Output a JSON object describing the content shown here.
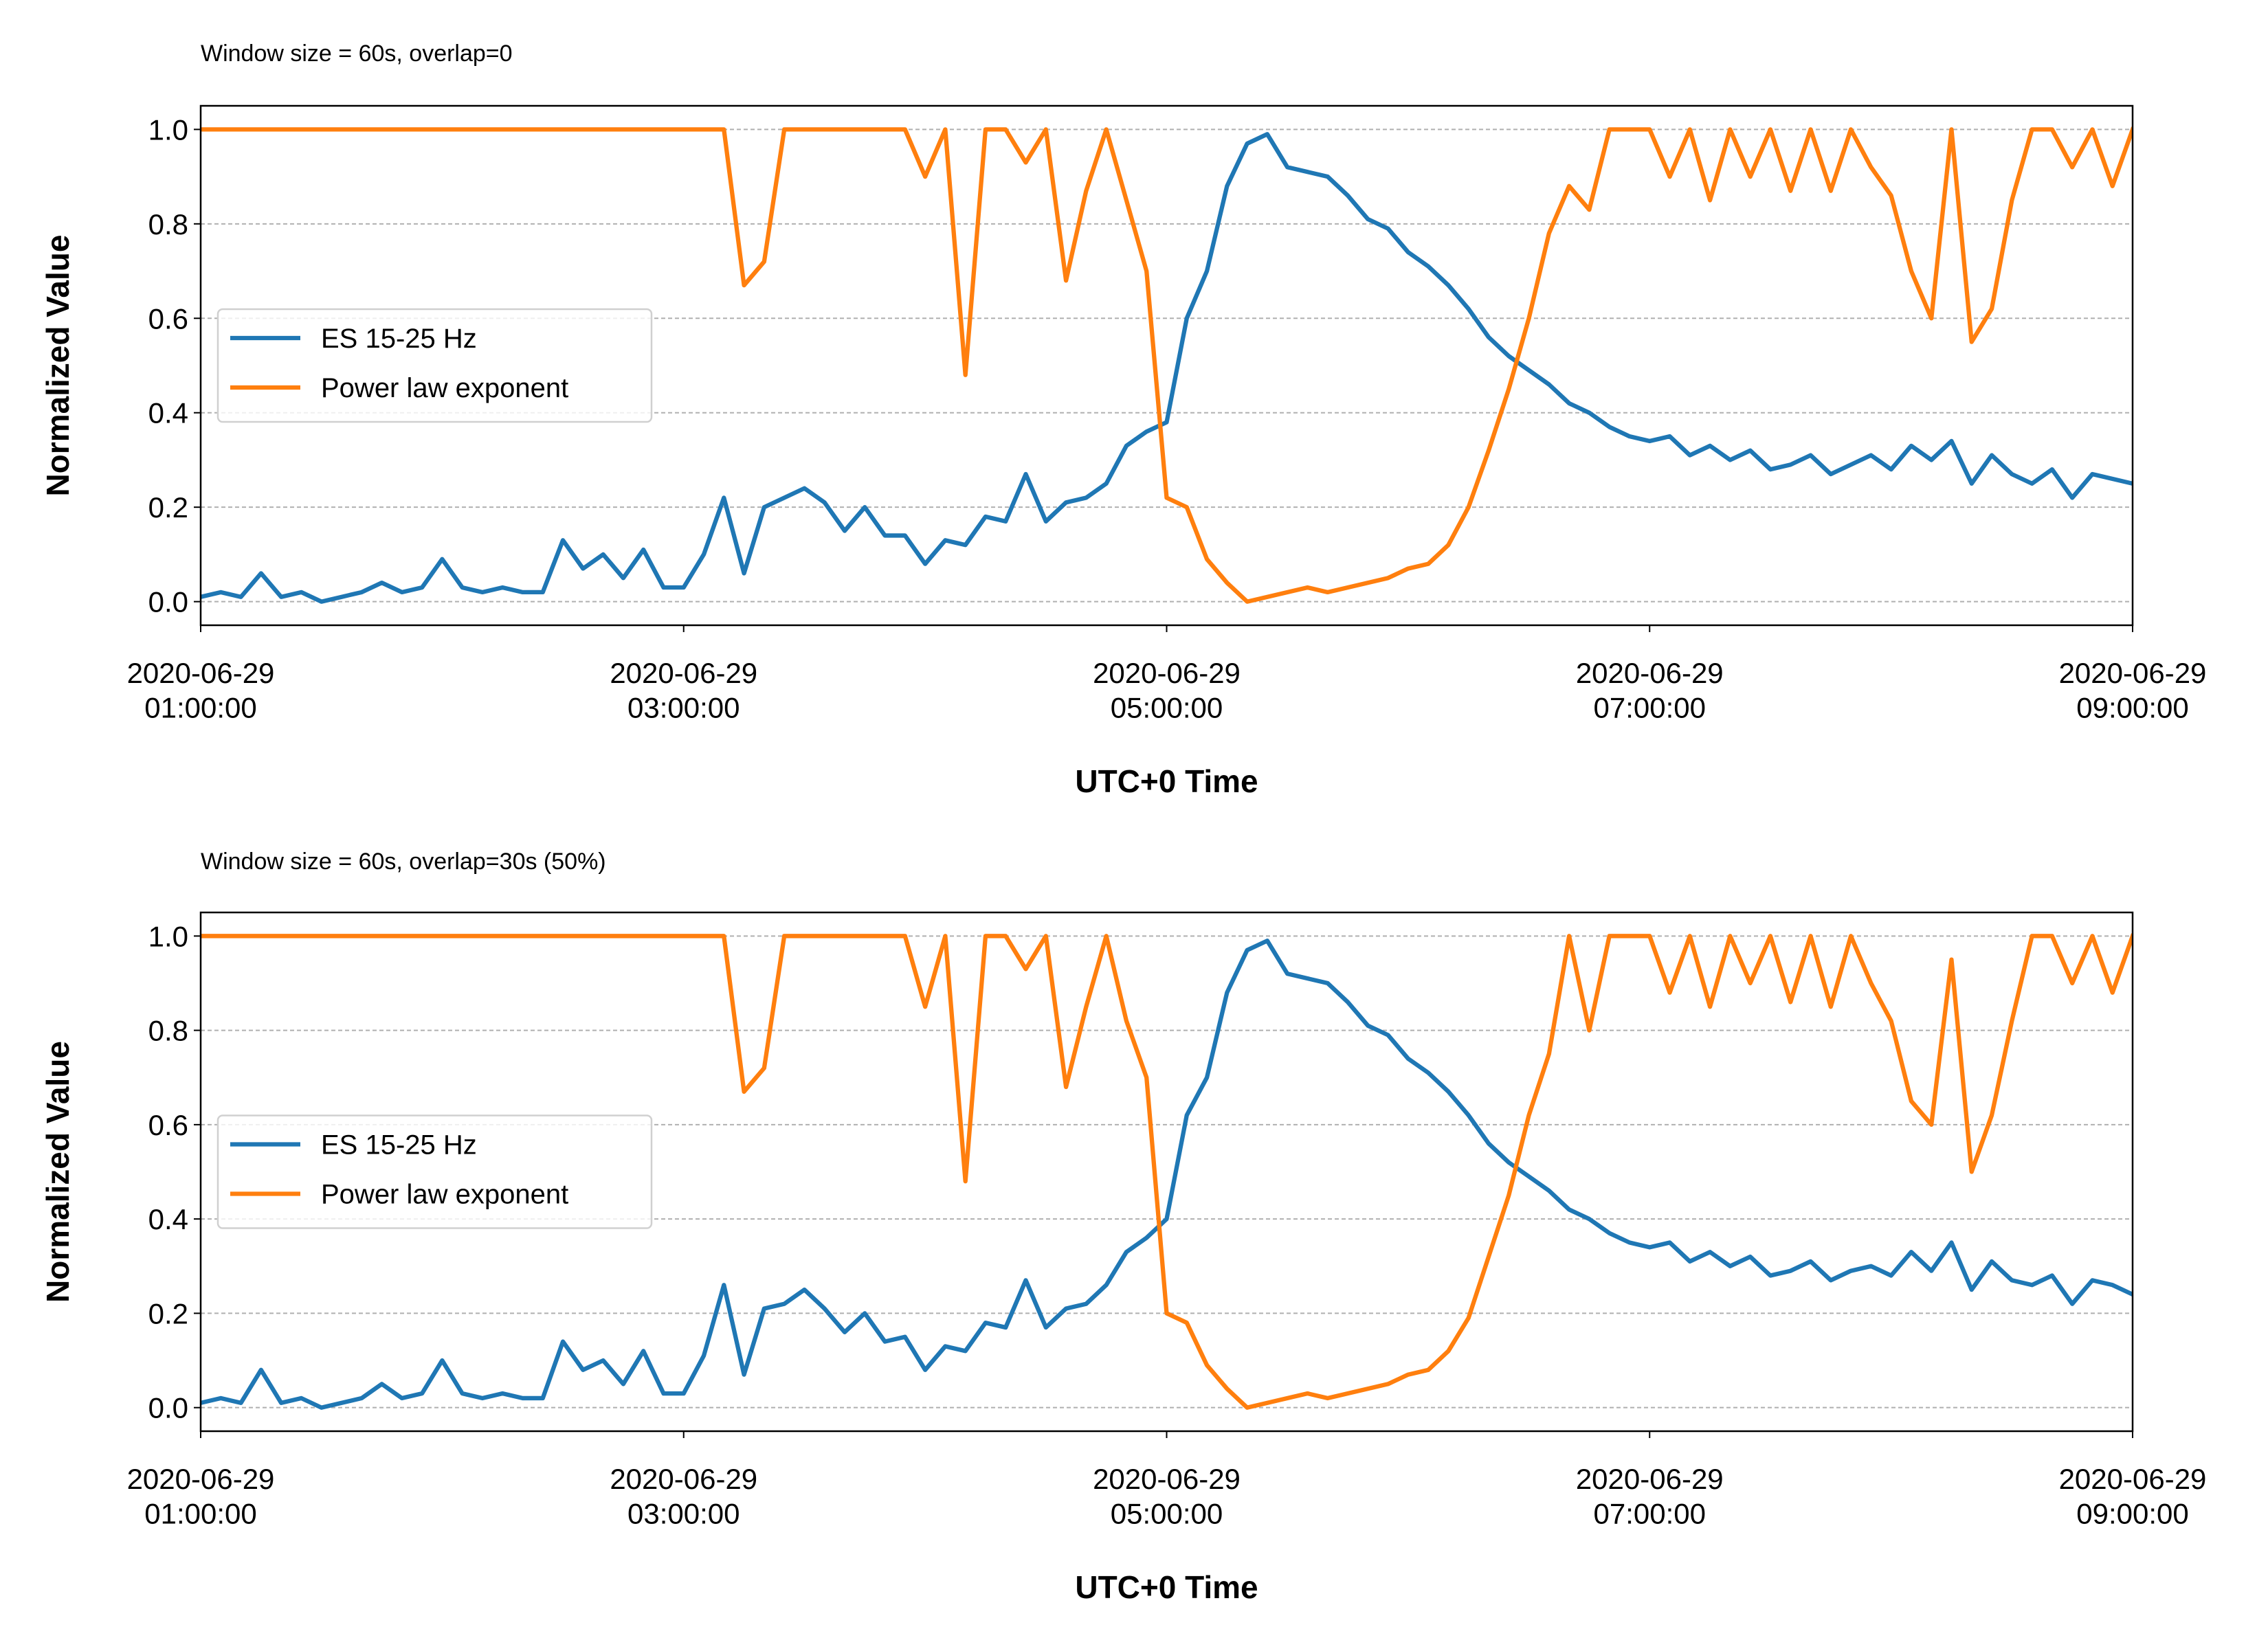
{
  "chart_data": [
    {
      "type": "line",
      "title": "Window size = 60s, overlap=0",
      "x_label": "UTC+0 Time",
      "y_label": "Normalized Value",
      "x": [
        "2020-06-29 01:00:00",
        "2020-06-29 01:05:00",
        "2020-06-29 01:10:00",
        "2020-06-29 01:15:00",
        "2020-06-29 01:20:00",
        "2020-06-29 01:25:00",
        "2020-06-29 01:30:00",
        "2020-06-29 01:35:00",
        "2020-06-29 01:40:00",
        "2020-06-29 01:45:00",
        "2020-06-29 01:50:00",
        "2020-06-29 01:55:00",
        "2020-06-29 02:00:00",
        "2020-06-29 02:05:00",
        "2020-06-29 02:10:00",
        "2020-06-29 02:15:00",
        "2020-06-29 02:20:00",
        "2020-06-29 02:25:00",
        "2020-06-29 02:30:00",
        "2020-06-29 02:35:00",
        "2020-06-29 02:40:00",
        "2020-06-29 02:45:00",
        "2020-06-29 02:50:00",
        "2020-06-29 02:55:00",
        "2020-06-29 03:00:00",
        "2020-06-29 03:05:00",
        "2020-06-29 03:10:00",
        "2020-06-29 03:15:00",
        "2020-06-29 03:20:00",
        "2020-06-29 03:25:00",
        "2020-06-29 03:30:00",
        "2020-06-29 03:35:00",
        "2020-06-29 03:40:00",
        "2020-06-29 03:45:00",
        "2020-06-29 03:50:00",
        "2020-06-29 03:55:00",
        "2020-06-29 04:00:00",
        "2020-06-29 04:05:00",
        "2020-06-29 04:10:00",
        "2020-06-29 04:15:00",
        "2020-06-29 04:20:00",
        "2020-06-29 04:25:00",
        "2020-06-29 04:30:00",
        "2020-06-29 04:35:00",
        "2020-06-29 04:40:00",
        "2020-06-29 04:45:00",
        "2020-06-29 04:50:00",
        "2020-06-29 04:55:00",
        "2020-06-29 05:00:00",
        "2020-06-29 05:05:00",
        "2020-06-29 05:10:00",
        "2020-06-29 05:15:00",
        "2020-06-29 05:20:00",
        "2020-06-29 05:25:00",
        "2020-06-29 05:30:00",
        "2020-06-29 05:35:00",
        "2020-06-29 05:40:00",
        "2020-06-29 05:45:00",
        "2020-06-29 05:50:00",
        "2020-06-29 05:55:00",
        "2020-06-29 06:00:00",
        "2020-06-29 06:05:00",
        "2020-06-29 06:10:00",
        "2020-06-29 06:15:00",
        "2020-06-29 06:20:00",
        "2020-06-29 06:25:00",
        "2020-06-29 06:30:00",
        "2020-06-29 06:35:00",
        "2020-06-29 06:40:00",
        "2020-06-29 06:45:00",
        "2020-06-29 06:50:00",
        "2020-06-29 06:55:00",
        "2020-06-29 07:00:00",
        "2020-06-29 07:05:00",
        "2020-06-29 07:10:00",
        "2020-06-29 07:15:00",
        "2020-06-29 07:20:00",
        "2020-06-29 07:25:00",
        "2020-06-29 07:30:00",
        "2020-06-29 07:35:00",
        "2020-06-29 07:40:00",
        "2020-06-29 07:45:00",
        "2020-06-29 07:50:00",
        "2020-06-29 07:55:00",
        "2020-06-29 08:00:00",
        "2020-06-29 08:05:00",
        "2020-06-29 08:10:00",
        "2020-06-29 08:15:00",
        "2020-06-29 08:20:00",
        "2020-06-29 08:25:00",
        "2020-06-29 08:30:00",
        "2020-06-29 08:35:00",
        "2020-06-29 08:40:00",
        "2020-06-29 08:45:00",
        "2020-06-29 08:50:00",
        "2020-06-29 08:55:00",
        "2020-06-29 09:00:00"
      ],
      "series": [
        {
          "name": "ES 15-25 Hz",
          "color": "#1f77b4",
          "values": [
            0.01,
            0.02,
            0.01,
            0.06,
            0.01,
            0.02,
            0.0,
            0.01,
            0.02,
            0.04,
            0.02,
            0.03,
            0.09,
            0.03,
            0.02,
            0.03,
            0.02,
            0.02,
            0.13,
            0.07,
            0.1,
            0.05,
            0.11,
            0.03,
            0.03,
            0.1,
            0.22,
            0.06,
            0.2,
            0.22,
            0.24,
            0.21,
            0.15,
            0.2,
            0.14,
            0.14,
            0.08,
            0.13,
            0.12,
            0.18,
            0.17,
            0.27,
            0.17,
            0.21,
            0.22,
            0.25,
            0.33,
            0.36,
            0.38,
            0.6,
            0.7,
            0.88,
            0.97,
            0.99,
            0.92,
            0.91,
            0.9,
            0.86,
            0.81,
            0.79,
            0.74,
            0.71,
            0.67,
            0.62,
            0.56,
            0.52,
            0.49,
            0.46,
            0.42,
            0.4,
            0.37,
            0.35,
            0.34,
            0.35,
            0.31,
            0.33,
            0.3,
            0.32,
            0.28,
            0.29,
            0.31,
            0.27,
            0.29,
            0.31,
            0.28,
            0.33,
            0.3,
            0.34,
            0.25,
            0.31,
            0.27,
            0.25,
            0.28,
            0.22,
            0.27,
            0.26,
            0.25
          ]
        },
        {
          "name": "Power law exponent",
          "color": "#ff7f0e",
          "values": [
            1.0,
            1.0,
            1.0,
            1.0,
            1.0,
            1.0,
            1.0,
            1.0,
            1.0,
            1.0,
            1.0,
            1.0,
            1.0,
            1.0,
            1.0,
            1.0,
            1.0,
            1.0,
            1.0,
            1.0,
            1.0,
            1.0,
            1.0,
            1.0,
            1.0,
            1.0,
            1.0,
            0.67,
            0.72,
            1.0,
            1.0,
            1.0,
            1.0,
            1.0,
            1.0,
            1.0,
            0.9,
            1.0,
            0.48,
            1.0,
            1.0,
            0.93,
            1.0,
            0.68,
            0.87,
            1.0,
            0.85,
            0.7,
            0.22,
            0.2,
            0.09,
            0.04,
            0.0,
            0.01,
            0.02,
            0.03,
            0.02,
            0.03,
            0.04,
            0.05,
            0.07,
            0.08,
            0.12,
            0.2,
            0.32,
            0.45,
            0.6,
            0.78,
            0.88,
            0.83,
            1.0,
            1.0,
            1.0,
            0.9,
            1.0,
            0.85,
            1.0,
            0.9,
            1.0,
            0.87,
            1.0,
            0.87,
            1.0,
            0.92,
            0.86,
            0.7,
            0.6,
            1.0,
            0.55,
            0.62,
            0.85,
            1.0,
            1.0,
            0.92,
            1.0,
            0.88,
            1.0
          ]
        }
      ],
      "xlim": [
        "2020-06-29 01:00:00",
        "2020-06-29 09:00:00"
      ],
      "xticks": [
        {
          "value": "2020-06-29 01:00:00",
          "label": "2020-06-29\n01:00:00"
        },
        {
          "value": "2020-06-29 03:00:00",
          "label": "2020-06-29\n03:00:00"
        },
        {
          "value": "2020-06-29 05:00:00",
          "label": "2020-06-29\n05:00:00"
        },
        {
          "value": "2020-06-29 07:00:00",
          "label": "2020-06-29\n07:00:00"
        },
        {
          "value": "2020-06-29 09:00:00",
          "label": "2020-06-29\n09:00:00"
        }
      ],
      "ylim": [
        -0.05,
        1.05
      ],
      "yticks": [
        {
          "value": 0,
          "label": "0.0"
        },
        0.2,
        0.4,
        0.6,
        0.8,
        {
          "value": 1,
          "label": "1.0"
        }
      ],
      "grid": "y",
      "legend": "center left"
    },
    {
      "type": "line",
      "title": "Window size = 60s, overlap=30s (50%)",
      "x_label": "UTC+0 Time",
      "y_label": "Normalized Value",
      "x": [
        "2020-06-29 01:00:00",
        "2020-06-29 01:05:00",
        "2020-06-29 01:10:00",
        "2020-06-29 01:15:00",
        "2020-06-29 01:20:00",
        "2020-06-29 01:25:00",
        "2020-06-29 01:30:00",
        "2020-06-29 01:35:00",
        "2020-06-29 01:40:00",
        "2020-06-29 01:45:00",
        "2020-06-29 01:50:00",
        "2020-06-29 01:55:00",
        "2020-06-29 02:00:00",
        "2020-06-29 02:05:00",
        "2020-06-29 02:10:00",
        "2020-06-29 02:15:00",
        "2020-06-29 02:20:00",
        "2020-06-29 02:25:00",
        "2020-06-29 02:30:00",
        "2020-06-29 02:35:00",
        "2020-06-29 02:40:00",
        "2020-06-29 02:45:00",
        "2020-06-29 02:50:00",
        "2020-06-29 02:55:00",
        "2020-06-29 03:00:00",
        "2020-06-29 03:05:00",
        "2020-06-29 03:10:00",
        "2020-06-29 03:15:00",
        "2020-06-29 03:20:00",
        "2020-06-29 03:25:00",
        "2020-06-29 03:30:00",
        "2020-06-29 03:35:00",
        "2020-06-29 03:40:00",
        "2020-06-29 03:45:00",
        "2020-06-29 03:50:00",
        "2020-06-29 03:55:00",
        "2020-06-29 04:00:00",
        "2020-06-29 04:05:00",
        "2020-06-29 04:10:00",
        "2020-06-29 04:15:00",
        "2020-06-29 04:20:00",
        "2020-06-29 04:25:00",
        "2020-06-29 04:30:00",
        "2020-06-29 04:35:00",
        "2020-06-29 04:40:00",
        "2020-06-29 04:45:00",
        "2020-06-29 04:50:00",
        "2020-06-29 04:55:00",
        "2020-06-29 05:00:00",
        "2020-06-29 05:05:00",
        "2020-06-29 05:10:00",
        "2020-06-29 05:15:00",
        "2020-06-29 05:20:00",
        "2020-06-29 05:25:00",
        "2020-06-29 05:30:00",
        "2020-06-29 05:35:00",
        "2020-06-29 05:40:00",
        "2020-06-29 05:45:00",
        "2020-06-29 05:50:00",
        "2020-06-29 05:55:00",
        "2020-06-29 06:00:00",
        "2020-06-29 06:05:00",
        "2020-06-29 06:10:00",
        "2020-06-29 06:15:00",
        "2020-06-29 06:20:00",
        "2020-06-29 06:25:00",
        "2020-06-29 06:30:00",
        "2020-06-29 06:35:00",
        "2020-06-29 06:40:00",
        "2020-06-29 06:45:00",
        "2020-06-29 06:50:00",
        "2020-06-29 06:55:00",
        "2020-06-29 07:00:00",
        "2020-06-29 07:05:00",
        "2020-06-29 07:10:00",
        "2020-06-29 07:15:00",
        "2020-06-29 07:20:00",
        "2020-06-29 07:25:00",
        "2020-06-29 07:30:00",
        "2020-06-29 07:35:00",
        "2020-06-29 07:40:00",
        "2020-06-29 07:45:00",
        "2020-06-29 07:50:00",
        "2020-06-29 07:55:00",
        "2020-06-29 08:00:00",
        "2020-06-29 08:05:00",
        "2020-06-29 08:10:00",
        "2020-06-29 08:15:00",
        "2020-06-29 08:20:00",
        "2020-06-29 08:25:00",
        "2020-06-29 08:30:00",
        "2020-06-29 08:35:00",
        "2020-06-29 08:40:00",
        "2020-06-29 08:45:00",
        "2020-06-29 08:50:00",
        "2020-06-29 08:55:00",
        "2020-06-29 09:00:00"
      ],
      "series": [
        {
          "name": "ES 15-25 Hz",
          "color": "#1f77b4",
          "values": [
            0.01,
            0.02,
            0.01,
            0.08,
            0.01,
            0.02,
            0.0,
            0.01,
            0.02,
            0.05,
            0.02,
            0.03,
            0.1,
            0.03,
            0.02,
            0.03,
            0.02,
            0.02,
            0.14,
            0.08,
            0.1,
            0.05,
            0.12,
            0.03,
            0.03,
            0.11,
            0.26,
            0.07,
            0.21,
            0.22,
            0.25,
            0.21,
            0.16,
            0.2,
            0.14,
            0.15,
            0.08,
            0.13,
            0.12,
            0.18,
            0.17,
            0.27,
            0.17,
            0.21,
            0.22,
            0.26,
            0.33,
            0.36,
            0.4,
            0.62,
            0.7,
            0.88,
            0.97,
            0.99,
            0.92,
            0.91,
            0.9,
            0.86,
            0.81,
            0.79,
            0.74,
            0.71,
            0.67,
            0.62,
            0.56,
            0.52,
            0.49,
            0.46,
            0.42,
            0.4,
            0.37,
            0.35,
            0.34,
            0.35,
            0.31,
            0.33,
            0.3,
            0.32,
            0.28,
            0.29,
            0.31,
            0.27,
            0.29,
            0.3,
            0.28,
            0.33,
            0.29,
            0.35,
            0.25,
            0.31,
            0.27,
            0.26,
            0.28,
            0.22,
            0.27,
            0.26,
            0.24
          ]
        },
        {
          "name": "Power law exponent",
          "color": "#ff7f0e",
          "values": [
            1.0,
            1.0,
            1.0,
            1.0,
            1.0,
            1.0,
            1.0,
            1.0,
            1.0,
            1.0,
            1.0,
            1.0,
            1.0,
            1.0,
            1.0,
            1.0,
            1.0,
            1.0,
            1.0,
            1.0,
            1.0,
            1.0,
            1.0,
            1.0,
            1.0,
            1.0,
            1.0,
            0.67,
            0.72,
            1.0,
            1.0,
            1.0,
            1.0,
            1.0,
            1.0,
            1.0,
            0.85,
            1.0,
            0.48,
            1.0,
            1.0,
            0.93,
            1.0,
            0.68,
            0.85,
            1.0,
            0.82,
            0.7,
            0.2,
            0.18,
            0.09,
            0.04,
            0.0,
            0.01,
            0.02,
            0.03,
            0.02,
            0.03,
            0.04,
            0.05,
            0.07,
            0.08,
            0.12,
            0.19,
            0.32,
            0.45,
            0.62,
            0.75,
            1.0,
            0.8,
            1.0,
            1.0,
            1.0,
            0.88,
            1.0,
            0.85,
            1.0,
            0.9,
            1.0,
            0.86,
            1.0,
            0.85,
            1.0,
            0.9,
            0.82,
            0.65,
            0.6,
            0.95,
            0.5,
            0.62,
            0.82,
            1.0,
            1.0,
            0.9,
            1.0,
            0.88,
            1.0
          ]
        }
      ],
      "xlim": [
        "2020-06-29 01:00:00",
        "2020-06-29 09:00:00"
      ],
      "xticks": [
        {
          "value": "2020-06-29 01:00:00",
          "label": "2020-06-29\n01:00:00"
        },
        {
          "value": "2020-06-29 03:00:00",
          "label": "2020-06-29\n03:00:00"
        },
        {
          "value": "2020-06-29 05:00:00",
          "label": "2020-06-29\n05:00:00"
        },
        {
          "value": "2020-06-29 07:00:00",
          "label": "2020-06-29\n07:00:00"
        },
        {
          "value": "2020-06-29 09:00:00",
          "label": "2020-06-29\n09:00:00"
        }
      ],
      "ylim": [
        -0.05,
        1.05
      ],
      "yticks": [
        {
          "value": 0,
          "label": "0.0"
        },
        0.2,
        0.4,
        0.6,
        0.8,
        {
          "value": 1,
          "label": "1.0"
        }
      ],
      "grid": "y",
      "legend": "center left"
    }
  ]
}
